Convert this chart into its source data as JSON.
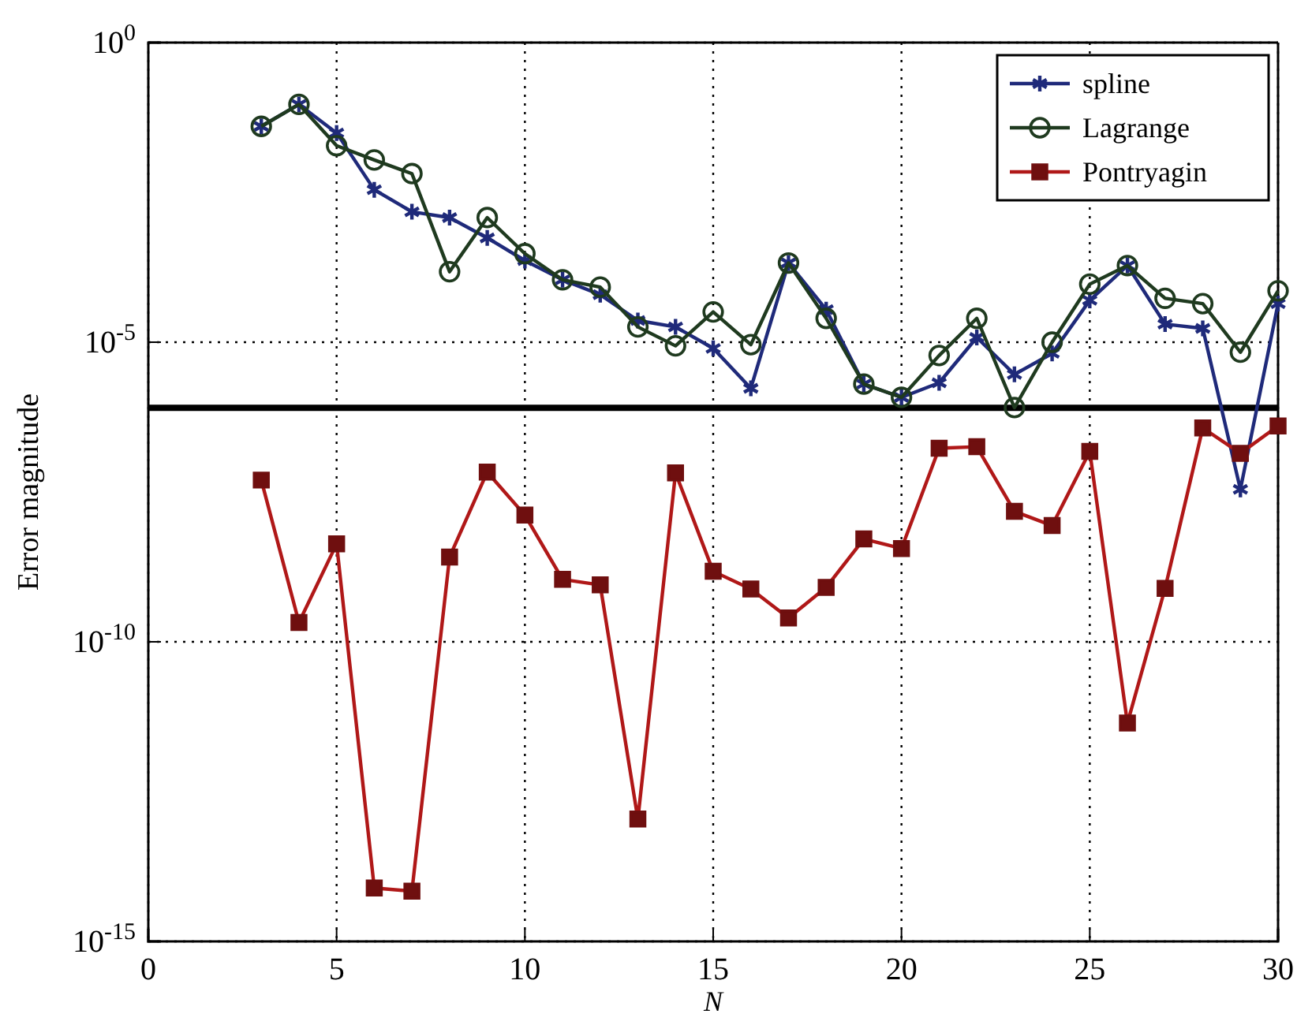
{
  "chart_data": {
    "type": "line",
    "xlabel": "N",
    "ylabel": "Error magnitude",
    "log": "y",
    "grid": true,
    "legend": "top right",
    "line_style": "solid",
    "xlim": [
      0,
      30
    ],
    "xticks": [
      0,
      5,
      10,
      15,
      20,
      25,
      30
    ],
    "ylim": [
      1e-15,
      1
    ],
    "yticks": [
      {
        "value": 1e-15,
        "label": "10$^{-15}$"
      },
      {
        "value": 1e-10,
        "label": "10$^{-10}$"
      },
      {
        "value": 1e-05,
        "label": "10$^{-5}$"
      },
      {
        "value": 1,
        "label": "10$^{0}$"
      }
    ],
    "x": [
      3,
      4,
      5,
      6,
      7,
      8,
      9,
      10,
      11,
      12,
      13,
      14,
      15,
      16,
      17,
      18,
      19,
      20,
      21,
      22,
      23,
      24,
      25,
      26,
      27,
      28,
      29,
      30
    ],
    "ref_lines": [
      {
        "axis": "y",
        "value": 8e-07,
        "color": "#000000"
      }
    ],
    "series": [
      {
        "name": "spline",
        "color": "#1f2a7a",
        "marker": "cross",
        "values": [
          0.04,
          0.093,
          0.031,
          0.0035,
          0.0015,
          0.0012,
          0.00055,
          0.00023,
          0.00011,
          6.2e-05,
          2.3e-05,
          1.8e-05,
          7.9e-06,
          1.7e-06,
          0.00021,
          3.5e-05,
          2e-06,
          1.2e-06,
          2.1e-06,
          1.2e-05,
          2.9e-06,
          6.5e-06,
          5e-05,
          0.00019,
          2e-05,
          1.7e-05,
          3.5e-08,
          4.4e-05
        ]
      },
      {
        "name": "Lagrange",
        "color": "#1f3a1f",
        "marker": "circle",
        "values": [
          0.04,
          0.093,
          0.019,
          0.011,
          0.0065,
          0.00015,
          0.0012,
          0.0003,
          0.00011,
          8.3e-05,
          1.8e-05,
          8.7e-06,
          3.2e-05,
          9.1e-06,
          0.00021,
          2.5e-05,
          2e-06,
          1.2e-06,
          6e-06,
          2.5e-05,
          8.1e-07,
          1e-05,
          9.3e-05,
          0.00019,
          5.4e-05,
          4.4e-05,
          6.8e-06,
          7.2e-05
        ]
      },
      {
        "name": "Pontryagin",
        "color": "#b01818",
        "marker": "square",
        "values": [
          5e-08,
          2.1e-10,
          4.3e-09,
          7.8e-15,
          6.9e-15,
          2.6e-09,
          6.8e-08,
          1.3e-08,
          1.1e-09,
          8.9e-10,
          1.1e-13,
          6.6e-08,
          1.5e-09,
          7.6e-10,
          2.5e-10,
          8.1e-10,
          5.2e-09,
          3.6e-09,
          1.7e-07,
          1.8e-07,
          1.5e-08,
          8.7e-09,
          1.5e-07,
          4.4e-12,
          7.8e-10,
          3.7e-07,
          1.4e-07,
          4e-07
        ]
      }
    ]
  }
}
